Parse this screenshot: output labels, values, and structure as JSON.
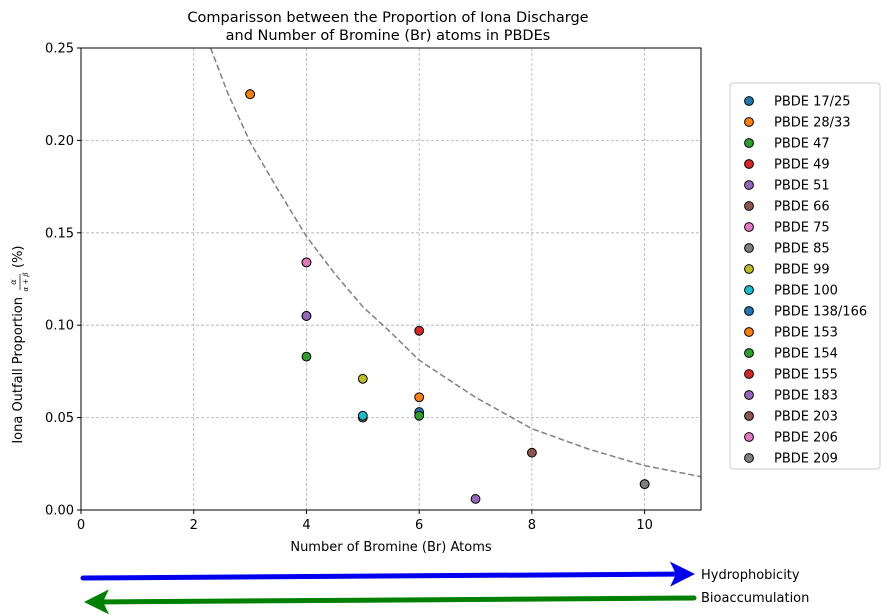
{
  "chart_data": {
    "type": "scatter",
    "title_line1": "Comparisson between the Proportion of Iona Discharge",
    "title_line2": "and Number of Bromine (Br) atoms in PBDEs",
    "xlabel": "Number of Bromine (Br) Atoms",
    "ylabel": "Iona Outfall Proportion",
    "ylabel_formula_num": "α",
    "ylabel_formula_den": "α + β",
    "ylabel_unit": "(%)",
    "xlim": [
      0,
      11
    ],
    "ylim": [
      0,
      0.25
    ],
    "xticks": [
      0,
      2,
      4,
      6,
      8,
      10
    ],
    "xtick_labels": [
      "0",
      "2",
      "4",
      "6",
      "8",
      "10"
    ],
    "yticks": [
      0,
      0.05,
      0.1,
      0.15,
      0.2,
      0.25
    ],
    "ytick_labels": [
      "0.00",
      "0.05",
      "0.10",
      "0.15",
      "0.20",
      "0.25"
    ],
    "grid": true,
    "legend_position": "right",
    "series": [
      {
        "name": "PBDE 17/25",
        "color": "#1f77b4",
        "x": 3,
        "y": 0.225
      },
      {
        "name": "PBDE 28/33",
        "color": "#ff7f0e",
        "x": 3,
        "y": 0.225
      },
      {
        "name": "PBDE 47",
        "color": "#2ca02c",
        "x": 4,
        "y": 0.083
      },
      {
        "name": "PBDE 49",
        "color": "#d62728",
        "x": 4,
        "y": 0.105
      },
      {
        "name": "PBDE 51",
        "color": "#9467bd",
        "x": 4,
        "y": 0.105
      },
      {
        "name": "PBDE 66",
        "color": "#8c564b",
        "x": 4,
        "y": 0.134
      },
      {
        "name": "PBDE 75",
        "color": "#e377c2",
        "x": 4,
        "y": 0.134
      },
      {
        "name": "PBDE 85",
        "color": "#7f7f7f",
        "x": 5,
        "y": 0.05
      },
      {
        "name": "PBDE 99",
        "color": "#bcbd22",
        "x": 5,
        "y": 0.071
      },
      {
        "name": "PBDE 100",
        "color": "#17becf",
        "x": 5,
        "y": 0.051
      },
      {
        "name": "PBDE 138/166",
        "color": "#1f77b4",
        "x": 6,
        "y": 0.053
      },
      {
        "name": "PBDE 153",
        "color": "#ff7f0e",
        "x": 6,
        "y": 0.061
      },
      {
        "name": "PBDE 154",
        "color": "#2ca02c",
        "x": 6,
        "y": 0.051
      },
      {
        "name": "PBDE 155",
        "color": "#d62728",
        "x": 6,
        "y": 0.097
      },
      {
        "name": "PBDE 183",
        "color": "#9467bd",
        "x": 7,
        "y": 0.006
      },
      {
        "name": "PBDE 203",
        "color": "#8c564b",
        "x": 8,
        "y": 0.031
      },
      {
        "name": "PBDE 206",
        "color": "#e377c2",
        "x": 10,
        "y": 0.014
      },
      {
        "name": "PBDE 209",
        "color": "#7f7f7f",
        "x": 10,
        "y": 0.014
      }
    ],
    "fit_curve": {
      "style": "dashed",
      "color": "#808080",
      "points": [
        [
          2.3,
          0.25
        ],
        [
          2.6,
          0.226
        ],
        [
          3,
          0.199
        ],
        [
          3.5,
          0.173
        ],
        [
          4,
          0.148
        ],
        [
          4.5,
          0.128
        ],
        [
          5,
          0.11
        ],
        [
          5.5,
          0.096
        ],
        [
          6,
          0.081
        ],
        [
          7,
          0.061
        ],
        [
          8,
          0.044
        ],
        [
          9,
          0.033
        ],
        [
          10,
          0.024
        ],
        [
          11,
          0.018
        ]
      ]
    },
    "arrows": [
      {
        "label": "Hydrophobicity",
        "direction": "right",
        "color": "#0000ee"
      },
      {
        "label": "Bioaccumulation",
        "direction": "left",
        "color": "#008000"
      }
    ]
  }
}
